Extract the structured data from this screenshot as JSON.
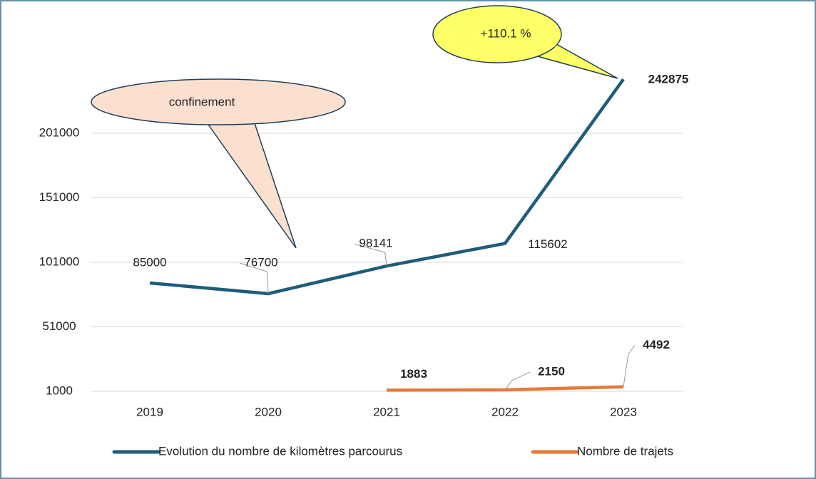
{
  "chart_data": {
    "type": "line",
    "categories": [
      "2019",
      "2020",
      "2021",
      "2022",
      "2023"
    ],
    "series": [
      {
        "name": "Evolution du nombre de kilomètres parcourus",
        "color": "#1f5c7a",
        "values": [
          85000,
          76700,
          98141,
          115602,
          242875
        ]
      },
      {
        "name": "Nombre de trajets",
        "color": "#e57a3a",
        "values": [
          null,
          null,
          1883,
          2150,
          4492
        ]
      }
    ],
    "ylim": [
      1000,
      251000
    ],
    "yticks": [
      1000,
      51000,
      101000,
      151000,
      201000
    ],
    "grid": true,
    "annotations": [
      "confinement",
      "+110.1 %"
    ]
  }
}
